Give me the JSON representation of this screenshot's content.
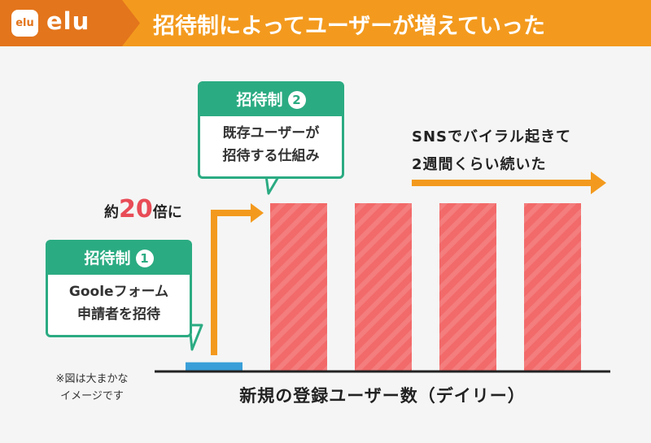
{
  "header": {
    "logo_icon_text": "elu",
    "logo_text": "elu",
    "title": "招待制によってユーザーが増えていった"
  },
  "callouts": [
    {
      "head": "招待制",
      "number": "1",
      "body_lines": [
        "Gooleフォーム",
        "申請者を招待"
      ]
    },
    {
      "head": "招待制",
      "number": "2",
      "body_lines": [
        "既存ユーザーが",
        "招待する仕組み"
      ]
    }
  ],
  "multiplier": {
    "prefix": "約",
    "value": "20",
    "suffix": "倍に"
  },
  "viral_note": {
    "lines": [
      "SNSでバイラル起きて",
      "2週間くらい続いた"
    ]
  },
  "footnote": {
    "lines": [
      "※図は大まかな",
      "イメージです"
    ]
  },
  "colors": {
    "header_bg": "#f39a1e",
    "brand_bg": "#e3751c",
    "callout_green": "#2bab82",
    "bar_red": "#f26a6a",
    "bar_blue": "#3a9fd8",
    "arrow_orange": "#f39a1e",
    "highlight_red": "#e84c57"
  },
  "chart_data": {
    "type": "bar",
    "xlabel": "新規の登録ユーザー数（デイリー）",
    "ylabel": "",
    "categories": [
      "",
      "",
      "",
      "",
      ""
    ],
    "values": [
      1,
      20,
      20,
      20,
      20
    ],
    "bar_colors": [
      "#3a9fd8",
      "#f26a6a",
      "#f26a6a",
      "#f26a6a",
      "#f26a6a"
    ],
    "ylim": [
      0,
      22
    ],
    "grid": false
  }
}
